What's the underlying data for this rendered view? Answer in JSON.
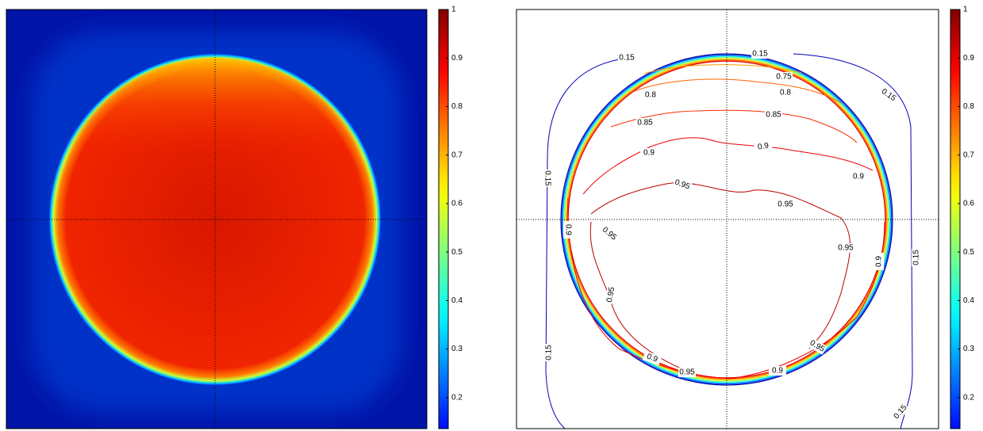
{
  "chart_data": [
    {
      "type": "heatmap",
      "clim": [
        0.136,
        1
      ],
      "cticks": [
        0.2,
        0.3,
        0.4,
        0.5,
        0.6,
        0.7,
        0.8,
        0.9,
        1
      ]
    },
    {
      "type": "contour",
      "clim": [
        0.136,
        1
      ],
      "cticks": [
        0.2,
        0.3,
        0.4,
        0.5,
        0.6,
        0.7,
        0.8,
        0.9,
        1
      ],
      "levels": [
        0.15,
        0.75,
        0.8,
        0.85,
        0.9,
        0.95
      ],
      "contour_labels": [
        0.15,
        0.15,
        0.15,
        0.15,
        0.15,
        0.15,
        0.15,
        0.75,
        0.8,
        0.8,
        0.85,
        0.85,
        0.9,
        0.9,
        0.9,
        0.9,
        0.9,
        0.9,
        0.9,
        0.95,
        0.95,
        0.95,
        0.95,
        0.95,
        0.95,
        0.95
      ]
    }
  ]
}
